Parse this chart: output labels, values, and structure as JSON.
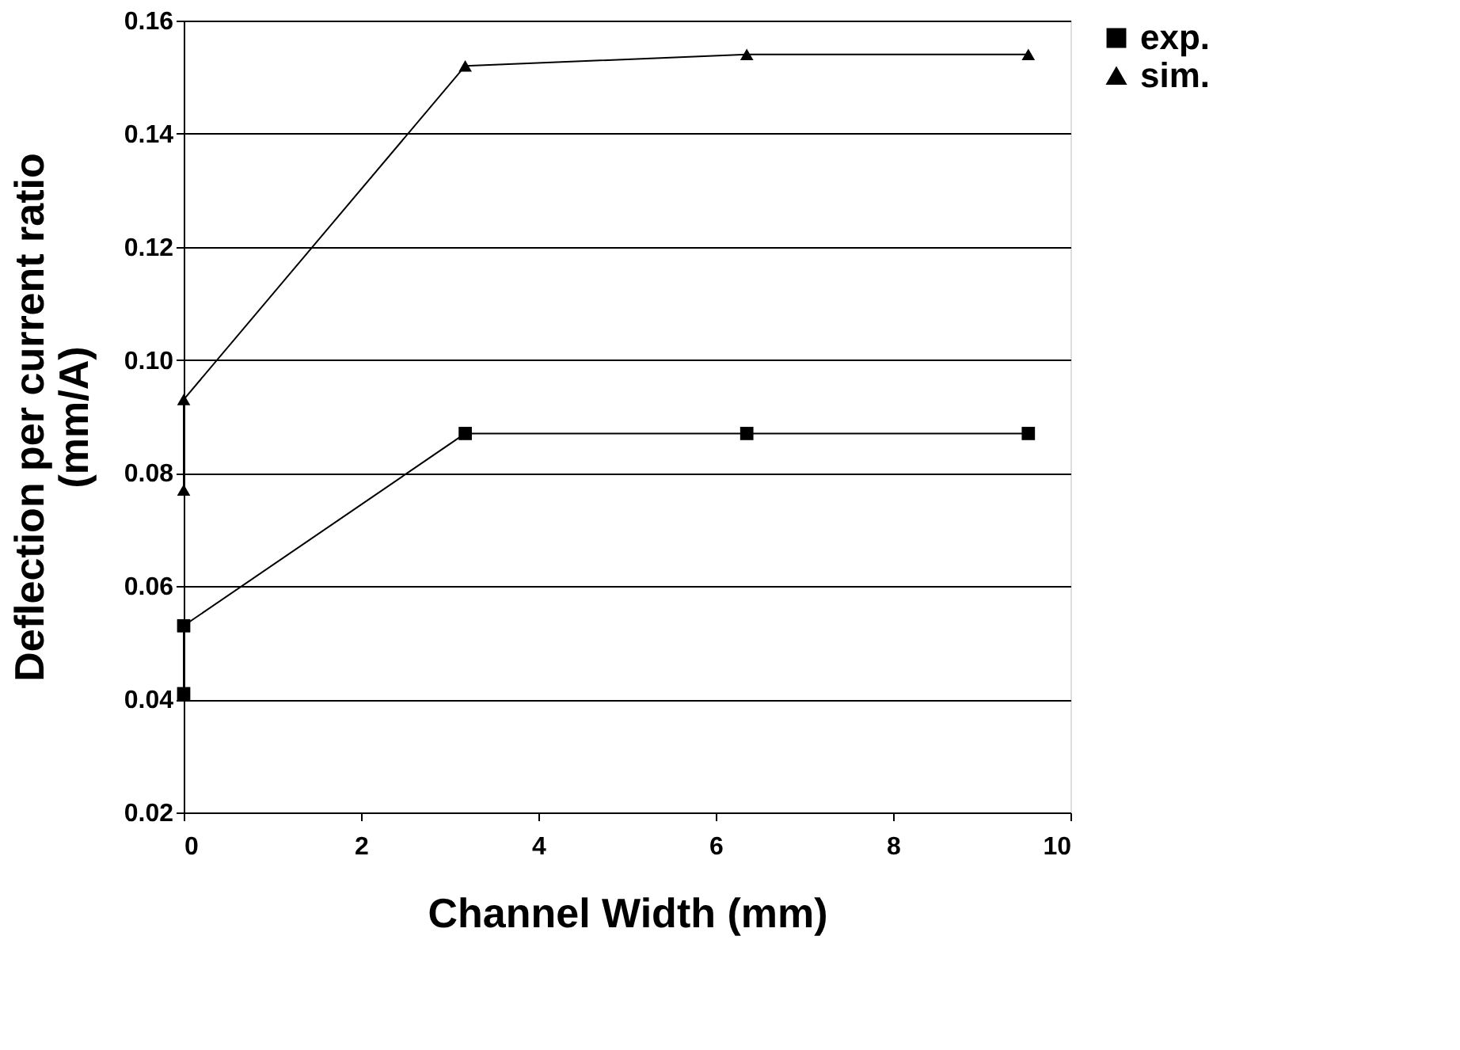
{
  "chart_data": {
    "type": "line",
    "xlabel": "Channel Width (mm)",
    "ylabel": "Deflection per current ratio\n(mm/A)",
    "xlim": [
      0,
      10
    ],
    "xticks": [
      0,
      2,
      4,
      6,
      8,
      10
    ],
    "ylim": [
      0.02,
      0.16
    ],
    "yticks": [
      0.02,
      0.04,
      0.06,
      0.08,
      {
        "value": 0.1,
        "label": "0.10"
      },
      0.12,
      0.14,
      0.16
    ],
    "grid": "y",
    "legend": "right",
    "line_style": "solid",
    "series": [
      {
        "name": "exp.",
        "color": "#000000",
        "marker": "square",
        "x": [
          0,
          0,
          3.175,
          6.35,
          9.525
        ],
        "values": [
          0.041,
          0.053,
          0.087,
          0.087,
          0.087
        ]
      },
      {
        "name": "sim.",
        "color": "#000000",
        "marker": "triangle",
        "x": [
          0,
          0,
          3.175,
          6.35,
          9.525
        ],
        "values": [
          0.077,
          0.093,
          0.152,
          0.154,
          0.154
        ]
      }
    ]
  }
}
